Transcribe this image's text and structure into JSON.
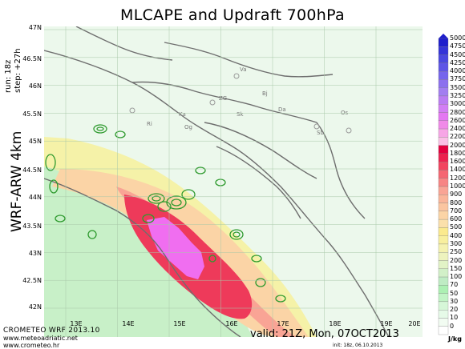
{
  "title": "MLCAPE and Updraft 700hPa",
  "run_label": "run: 18z",
  "step_label": "step: +27h",
  "model_label": "WRF-ARW 4km",
  "valid_label": "valid: 21Z, Mon, 07OCT2013",
  "init_label": "init: 18z, 06.10.2013",
  "credit_line1": "CROMETEO WRF 2013.10",
  "credit_line2": "www.meteoadriatic.net",
  "credit_line3": "www.crometeo.hr",
  "lat_labels": [
    "47N",
    "46.5N",
    "46N",
    "45.5N",
    "45N",
    "44.5N",
    "44N",
    "43.5N",
    "43N",
    "42.5N",
    "42N"
  ],
  "lon_labels": [
    "13E",
    "14E",
    "15E",
    "16E",
    "17E",
    "18E",
    "19E",
    "20E"
  ],
  "colorbar_unit": "J/kg",
  "colorbar": [
    {
      "label": "5000",
      "color": "#1e1ecc"
    },
    {
      "label": "4750",
      "color": "#3434d8"
    },
    {
      "label": "4500",
      "color": "#4a48e0"
    },
    {
      "label": "4250",
      "color": "#5e55e6"
    },
    {
      "label": "4000",
      "color": "#7565ec"
    },
    {
      "label": "3750",
      "color": "#8c70ee"
    },
    {
      "label": "3500",
      "color": "#a27ef0"
    },
    {
      "label": "3250",
      "color": "#ba7cf2"
    },
    {
      "label": "3000",
      "color": "#d27ef4"
    },
    {
      "label": "2800",
      "color": "#e477f2"
    },
    {
      "label": "2600",
      "color": "#f08ae8"
    },
    {
      "label": "2400",
      "color": "#f7a6e6"
    },
    {
      "label": "2200",
      "color": "#fbbfe6"
    },
    {
      "label": "2000",
      "color": "#e3003f"
    },
    {
      "label": "1800",
      "color": "#ec224f"
    },
    {
      "label": "1600",
      "color": "#f2445f"
    },
    {
      "label": "1400",
      "color": "#f56672"
    },
    {
      "label": "1200",
      "color": "#f78584"
    },
    {
      "label": "1000",
      "color": "#f9a495"
    },
    {
      "label": "900",
      "color": "#fab59a"
    },
    {
      "label": "800",
      "color": "#fbc5a0"
    },
    {
      "label": "700",
      "color": "#fbd4a6"
    },
    {
      "label": "600",
      "color": "#fbe0ab"
    },
    {
      "label": "500",
      "color": "#fbea8e"
    },
    {
      "label": "400",
      "color": "#f8ef9e"
    },
    {
      "label": "300",
      "color": "#f5f2b0"
    },
    {
      "label": "250",
      "color": "#eef3be"
    },
    {
      "label": "200",
      "color": "#e2f3c6"
    },
    {
      "label": "150",
      "color": "#d2f0c8"
    },
    {
      "label": "100",
      "color": "#bfecc4"
    },
    {
      "label": "70",
      "color": "#acf0b3"
    },
    {
      "label": "50",
      "color": "#c2f4c6"
    },
    {
      "label": "30",
      "color": "#d6f7d8"
    },
    {
      "label": "20",
      "color": "#e6fae8"
    },
    {
      "label": "10",
      "color": "#f2fcf2"
    },
    {
      "label": "0",
      "color": "#ffffff"
    }
  ],
  "city_labels": [
    "Va",
    "Bj",
    "ZG",
    "Ka",
    "Da",
    "Sk",
    "Og",
    "Sb",
    "Ri",
    "Os"
  ],
  "legend_colors": {
    "contour": "#2e9a2e",
    "coast": "#6e6e6e",
    "updraft_core": "#f06ef0"
  }
}
